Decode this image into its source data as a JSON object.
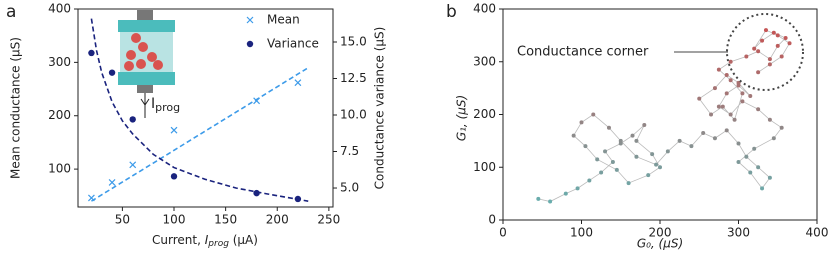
{
  "chart_data": [
    {
      "type": "scatter",
      "panel_label": "a",
      "xlabel": [
        "Current, ",
        "I",
        "prog",
        " (μA)"
      ],
      "ylabel": "Mean conductance (μS)",
      "y2label": "Conductance variance (μS)",
      "xlim": [
        7,
        254
      ],
      "xticks": [
        50,
        100,
        150,
        200,
        250
      ],
      "ylim": [
        29,
        400
      ],
      "yticks": [
        100,
        200,
        300,
        400
      ],
      "y2lim": [
        3.7,
        17.26
      ],
      "y2ticks": [
        {
          "value": 5,
          "label": "5.0"
        },
        {
          "value": 7.5,
          "label": "7.5"
        },
        {
          "value": 10,
          "label": "10.0"
        },
        {
          "value": 12.5,
          "label": "12.5"
        },
        {
          "value": 15,
          "label": "15.0"
        }
      ],
      "series": [
        {
          "name": "Mean",
          "color": "#3d9be9",
          "marker": "x",
          "x": [
            20,
            40,
            60,
            100,
            180,
            220
          ],
          "values": [
            46,
            75,
            108,
            173,
            228,
            262
          ]
        },
        {
          "name": "Variance",
          "color": "#1a237e",
          "marker": "o",
          "axis": "y2",
          "x": [
            20,
            40,
            60,
            100,
            180,
            220
          ],
          "values": [
            14.25,
            12.9,
            9.7,
            5.8,
            4.65,
            4.25
          ]
        }
      ],
      "fits": [
        {
          "color": "#3d9be9",
          "x": [
            20,
            230
          ],
          "values": [
            40,
            290
          ]
        },
        {
          "color": "#1a237e",
          "axis": "y2",
          "x": [
            20,
            25,
            30,
            40,
            50,
            60,
            80,
            100,
            130,
            160,
            190,
            230
          ],
          "values": [
            16.6,
            14.4,
            12.9,
            10.9,
            9.6,
            8.7,
            7.3,
            6.4,
            5.6,
            5.0,
            4.6,
            4.1
          ]
        }
      ],
      "legend": "upper right",
      "inset_label": [
        "I",
        "prog"
      ]
    },
    {
      "type": "walk",
      "panel_label": "b",
      "xlabel": "G₀, (μS)",
      "ylabel": "G₁, (μS)",
      "xlim": [
        0,
        400
      ],
      "xticks": [
        0,
        100,
        200,
        300,
        400
      ],
      "ylim": [
        0,
        400
      ],
      "yticks": [
        0,
        100,
        200,
        300,
        400
      ],
      "color_scale": [
        "#5fb7b7",
        "#d04a4a"
      ],
      "line_color": "#bbbbbb",
      "annotation": "Conductance corner",
      "x": [
        45,
        60,
        80,
        95,
        110,
        125,
        140,
        130,
        150,
        165,
        180,
        170,
        190,
        200,
        185,
        160,
        145,
        120,
        105,
        90,
        100,
        115,
        135,
        150,
        170,
        195,
        210,
        225,
        240,
        255,
        270,
        285,
        300,
        310,
        325,
        340,
        330,
        315,
        300,
        320,
        345,
        355,
        340,
        325,
        305,
        290,
        275,
        285,
        300,
        315,
        300,
        285,
        270,
        250,
        265,
        280,
        295,
        305,
        290,
        275,
        290,
        310,
        325,
        340,
        350,
        360,
        345,
        330,
        320,
        335,
        350,
        365,
        355,
        340,
        325
      ],
      "values": [
        40,
        35,
        50,
        60,
        75,
        90,
        110,
        130,
        145,
        160,
        180,
        150,
        125,
        100,
        85,
        70,
        95,
        115,
        140,
        160,
        185,
        200,
        175,
        150,
        120,
        105,
        130,
        150,
        140,
        165,
        155,
        170,
        145,
        120,
        100,
        80,
        60,
        90,
        110,
        135,
        155,
        175,
        190,
        210,
        225,
        200,
        215,
        240,
        255,
        235,
        260,
        275,
        250,
        230,
        200,
        215,
        190,
        240,
        265,
        285,
        300,
        310,
        320,
        305,
        330,
        345,
        355,
        340,
        325,
        360,
        350,
        335,
        310,
        295,
        280
      ]
    }
  ]
}
